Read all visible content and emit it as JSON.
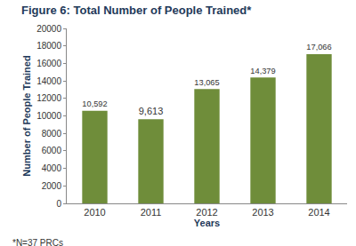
{
  "chart_data": {
    "type": "bar",
    "title": "Figure 6: Total Number of People Trained*",
    "x_label": "Years",
    "y_label": "Number of People Trained",
    "categories": [
      "2010",
      "2011",
      "2012",
      "2013",
      "2014"
    ],
    "values": [
      10592,
      9613,
      13065,
      14379,
      17066
    ],
    "value_labels": [
      "10,592",
      "9,613",
      "13,065",
      "14,379",
      "17,066"
    ],
    "color": "#6f8d3a",
    "ylim": [
      0,
      20000
    ],
    "yticks": [
      0,
      2000,
      4000,
      6000,
      8000,
      10000,
      12000,
      14000,
      16000,
      18000,
      20000
    ],
    "grid": false,
    "data_labels": true,
    "annotations": [
      "*N=37 PRCs"
    ]
  }
}
